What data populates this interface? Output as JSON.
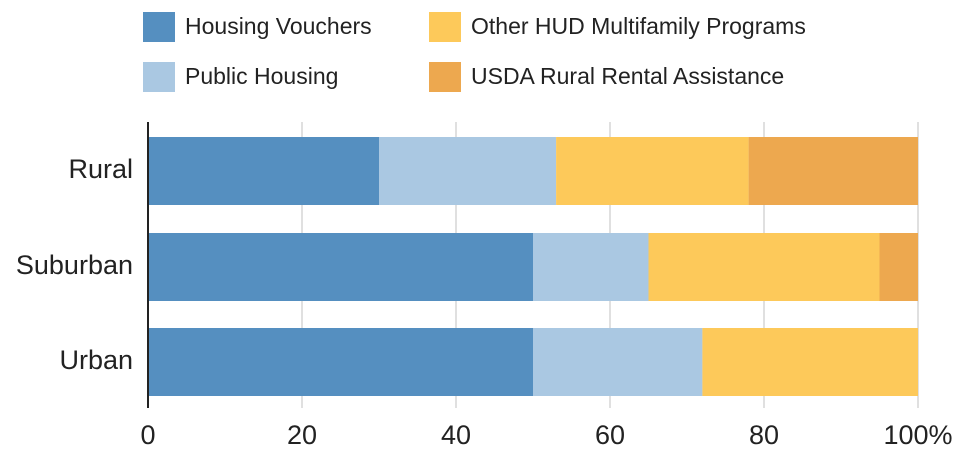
{
  "chart_data": {
    "type": "stacked_bar_horizontal",
    "categories": [
      "Rural",
      "Suburban",
      "Urban"
    ],
    "series": [
      {
        "name": "Housing Vouchers",
        "color": "#558fc0",
        "values": [
          30,
          50,
          50
        ]
      },
      {
        "name": "Public Housing",
        "color": "#aac8e2",
        "values": [
          23,
          15,
          22
        ]
      },
      {
        "name": "Other HUD Multifamily Programs",
        "color": "#fdc95a",
        "values": [
          25,
          30,
          28
        ]
      },
      {
        "name": "USDA Rural Rental Assistance",
        "color": "#eda84f",
        "values": [
          22,
          5,
          0
        ]
      }
    ],
    "xlim": [
      0,
      100
    ],
    "xticks": [
      0,
      20,
      40,
      60,
      80,
      {
        "value": 100,
        "label": "100%"
      }
    ],
    "grid": true
  }
}
